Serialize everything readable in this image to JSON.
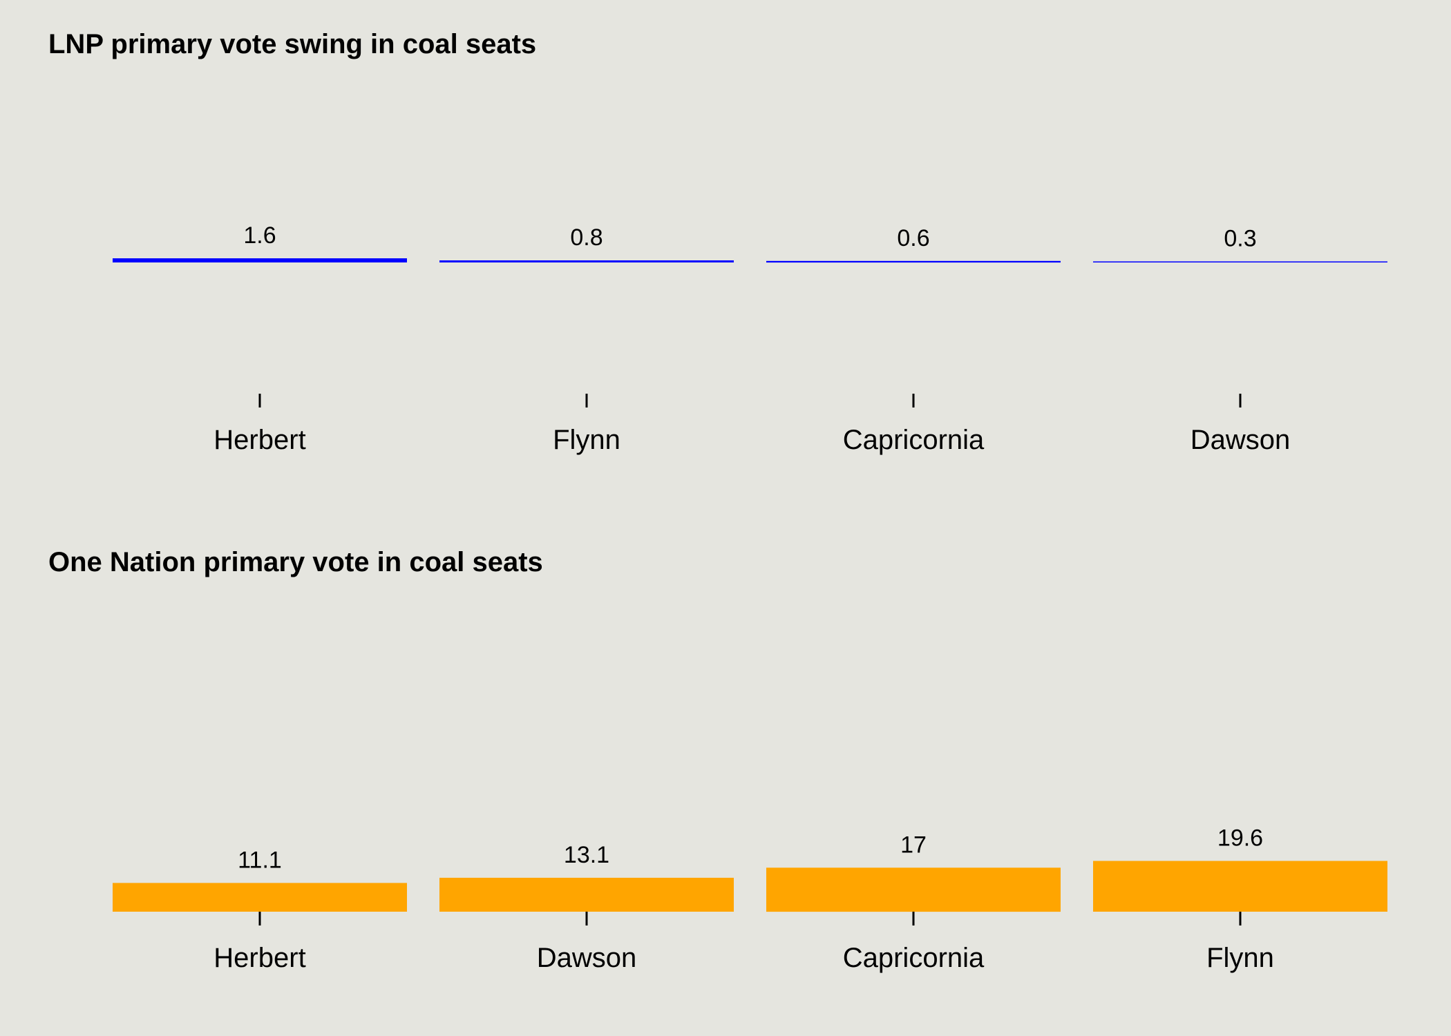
{
  "chart_data": [
    {
      "type": "bar",
      "title": "LNP primary vote swing in coal seats",
      "categories": [
        "Herbert",
        "Flynn",
        "Capricornia",
        "Dawson"
      ],
      "values": [
        1.6,
        0.8,
        0.6,
        0.3
      ],
      "data_labels": [
        "1.6",
        "0.8",
        "0.6",
        "0.3"
      ],
      "xlabel": "",
      "ylabel": "",
      "ylim": [
        0,
        40
      ],
      "grid": false,
      "colors": {
        "bar": "#0000ff",
        "tick": "#000000",
        "label": "#000000"
      }
    },
    {
      "type": "bar",
      "title": "One Nation primary vote in coal seats",
      "categories": [
        "Herbert",
        "Dawson",
        "Capricornia",
        "Flynn"
      ],
      "values": [
        11.1,
        13.1,
        17,
        19.6
      ],
      "data_labels": [
        "11.1",
        "13.1",
        "17",
        "19.6"
      ],
      "xlabel": "",
      "ylabel": "",
      "ylim": [
        0,
        40
      ],
      "grid": false,
      "colors": {
        "bar": "#ffa500",
        "tick": "#000000",
        "label": "#000000"
      }
    }
  ]
}
